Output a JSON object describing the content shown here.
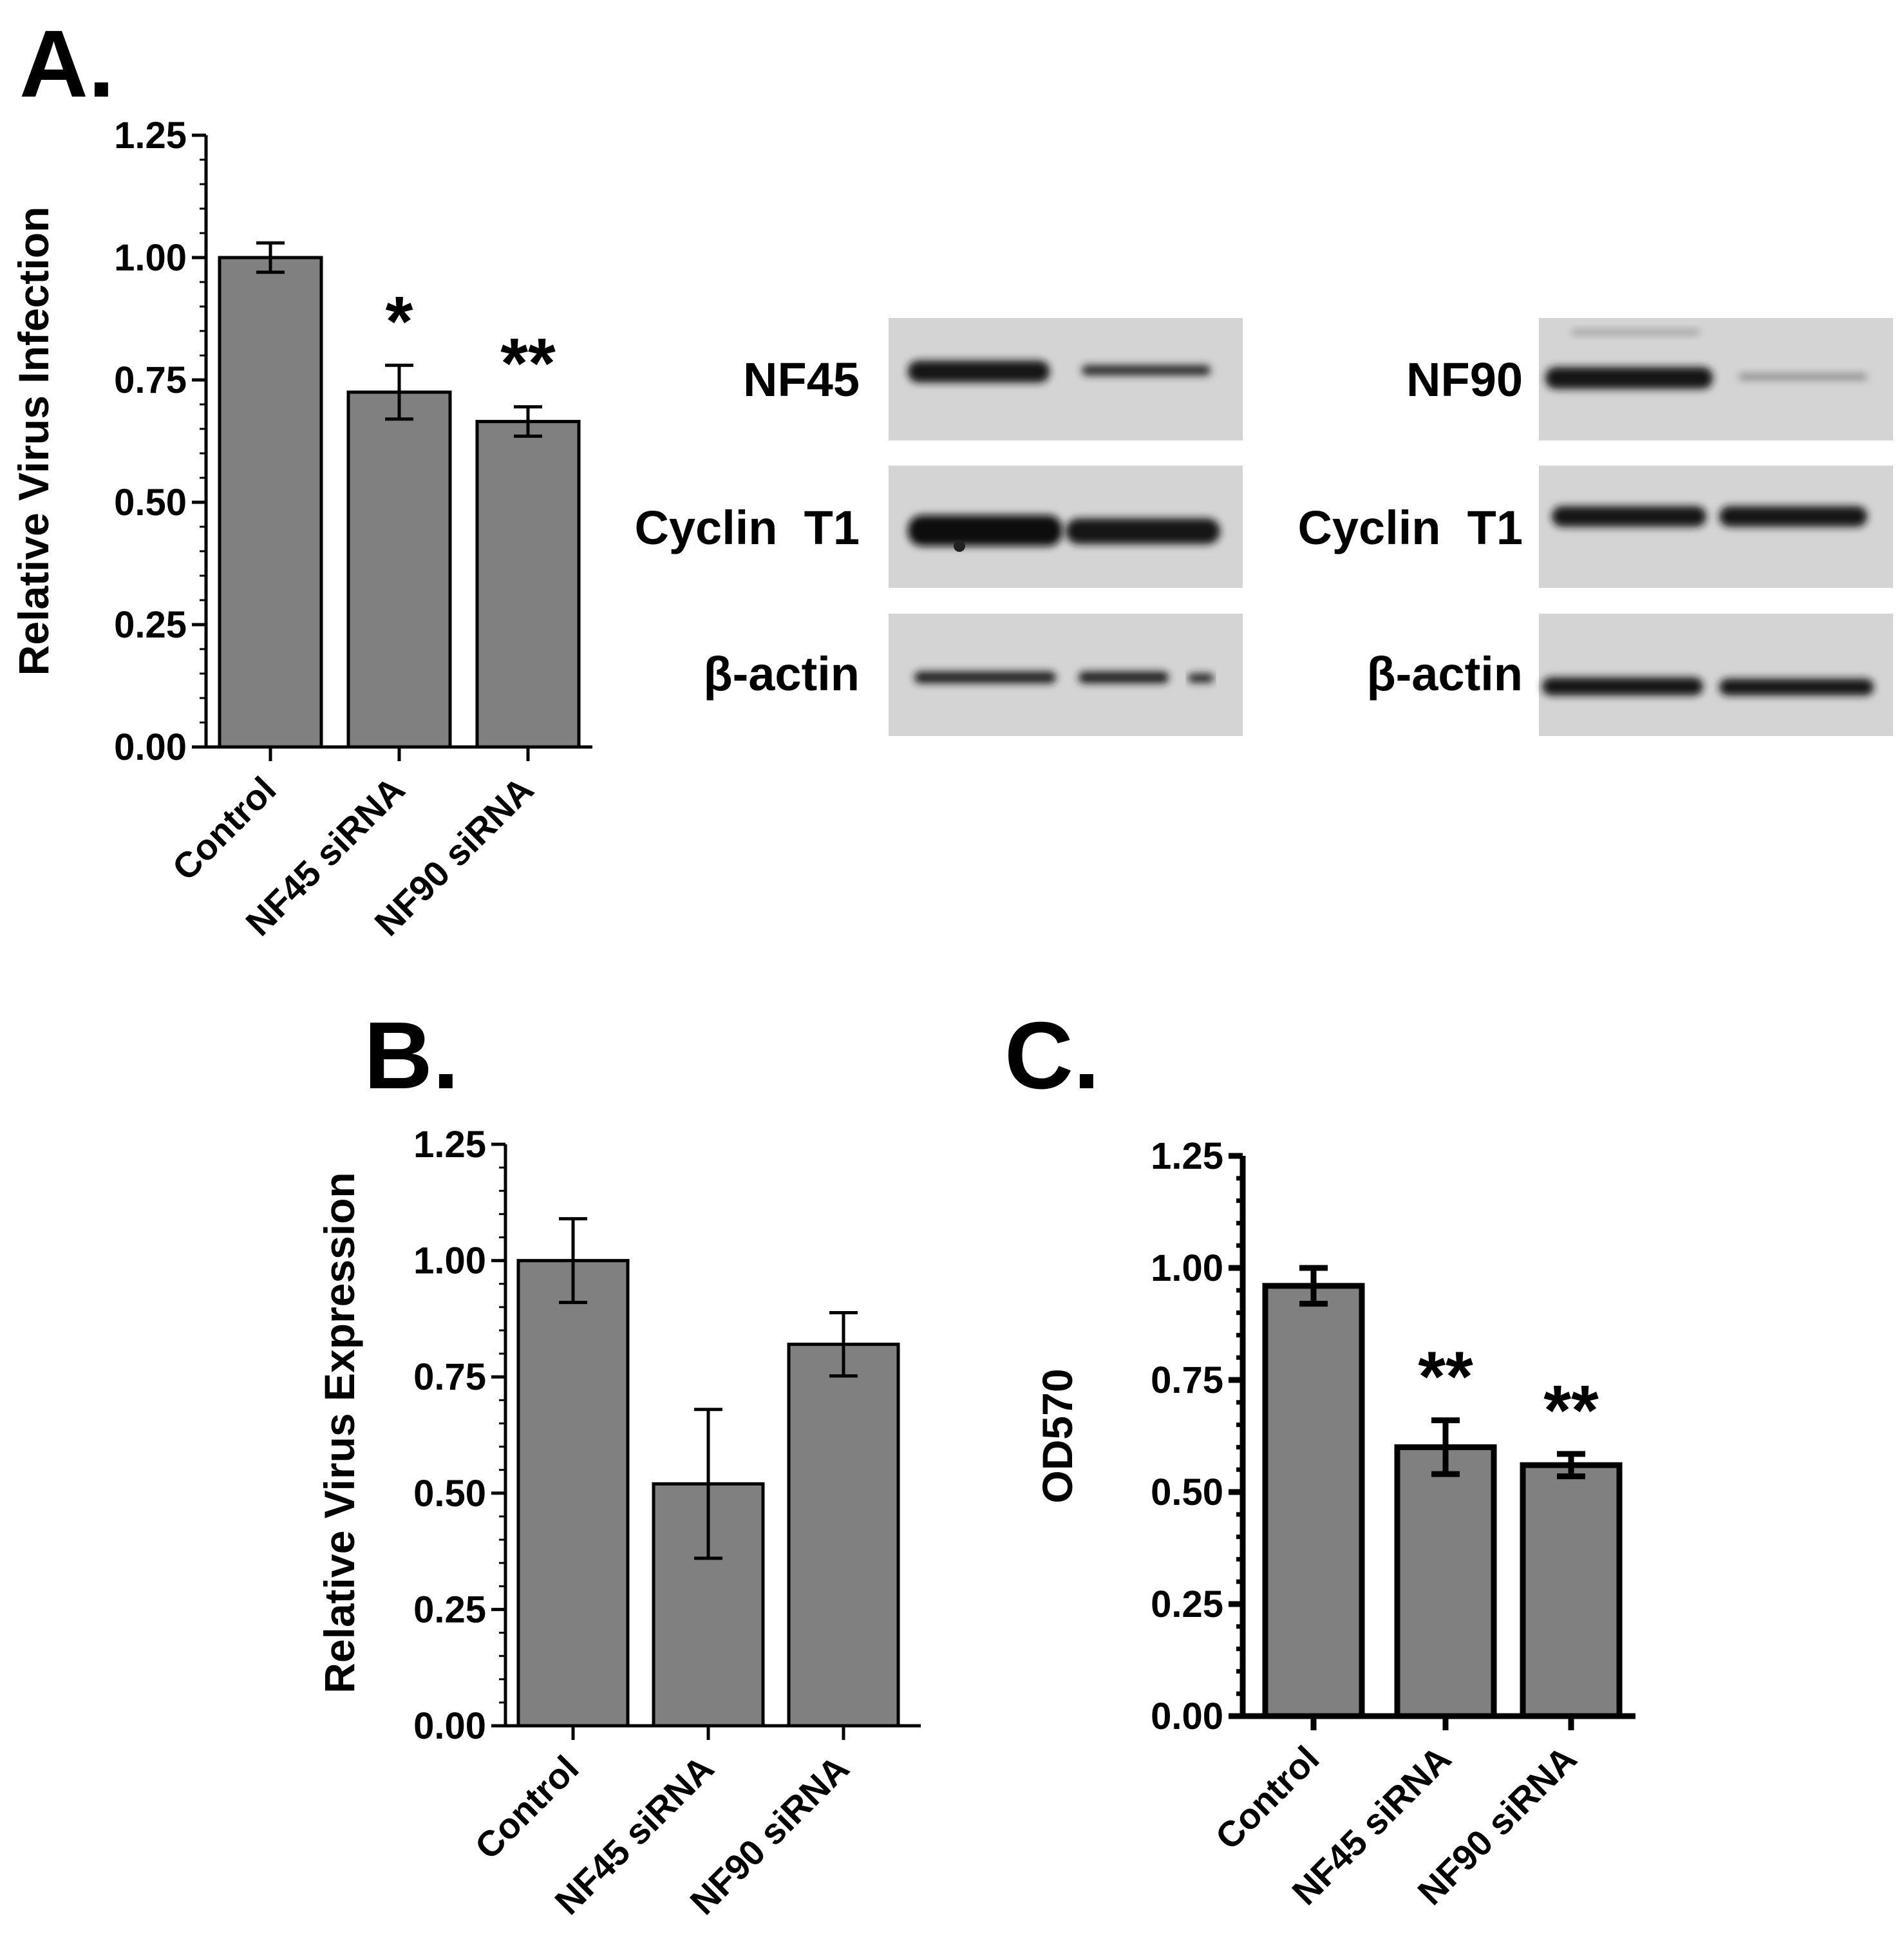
{
  "panels": {
    "a": "A.",
    "b": "B.",
    "c": "C."
  },
  "colors": {
    "bar_fill": "#808080",
    "axis": "#000000",
    "blot_background": "#d4d4d4",
    "band": "#1a1a1a"
  },
  "chart_data": [
    {
      "id": "A",
      "type": "bar",
      "categories": [
        "Control",
        "NF45 siRNA",
        "NF90 siRNA"
      ],
      "values": [
        1.0,
        0.725,
        0.665
      ],
      "error": [
        0.03,
        0.055,
        0.03
      ],
      "significance": [
        "",
        "*",
        "**"
      ],
      "ylabel": "Relative Virus Infection",
      "xlabel": "",
      "ylim": [
        0,
        1.25
      ],
      "yticks": [
        "0.00",
        "0.25",
        "0.50",
        "0.75",
        "1.00",
        "1.25"
      ],
      "grid": false
    },
    {
      "id": "B",
      "type": "bar",
      "categories": [
        "Control",
        "NF45 siRNA",
        "NF90 siRNA"
      ],
      "values": [
        1.0,
        0.52,
        0.82
      ],
      "error": [
        0.09,
        0.16,
        0.068
      ],
      "significance": [
        "",
        "",
        ""
      ],
      "ylabel": "Relative Virus Expression",
      "xlabel": "",
      "ylim": [
        0,
        1.25
      ],
      "yticks": [
        "0.00",
        "0.25",
        "0.50",
        "0.75",
        "1.00",
        "1.25"
      ],
      "grid": false
    },
    {
      "id": "C",
      "type": "bar",
      "categories": [
        "Control",
        "NF45 siRNA",
        "NF90 siRNA"
      ],
      "values": [
        0.96,
        0.6,
        0.56
      ],
      "error": [
        0.04,
        0.06,
        0.025
      ],
      "significance": [
        "",
        "**",
        "**"
      ],
      "ylabel": "OD570",
      "xlabel": "",
      "ylim": [
        0,
        1.25
      ],
      "yticks": [
        "0.00",
        "0.25",
        "0.50",
        "0.75",
        "1.00",
        "1.25"
      ],
      "grid": false
    }
  ],
  "blots": {
    "nf45_panel": {
      "rows": [
        "NF45",
        "Cyclin  T1",
        "β-actin"
      ]
    },
    "nf90_panel": {
      "rows": [
        "NF90",
        "Cyclin  T1",
        "β-actin"
      ]
    }
  }
}
